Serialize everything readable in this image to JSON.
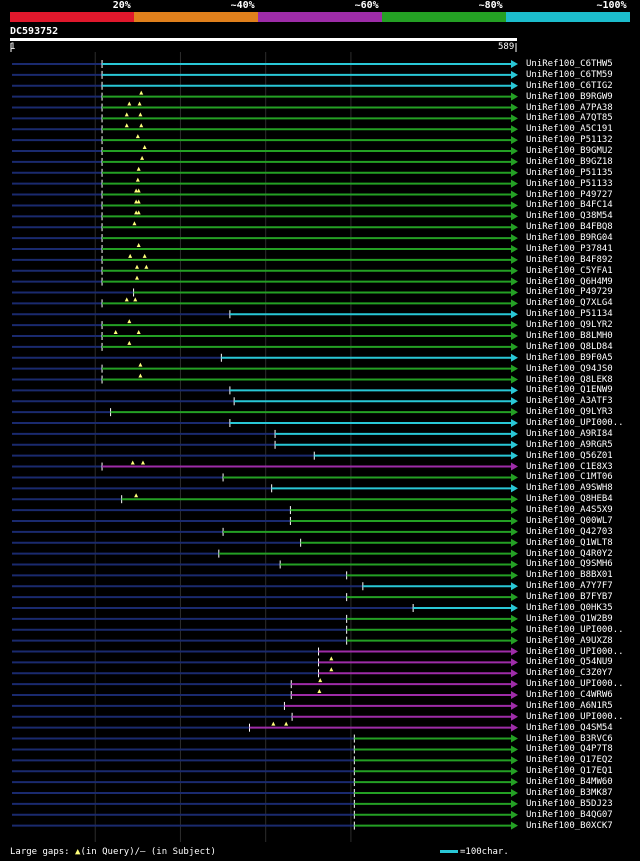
{
  "legend": {
    "segments": [
      {
        "color": "#e0182c",
        "label": "20%"
      },
      {
        "color": "#e0801c",
        "label": "~40%"
      },
      {
        "color": "#9e2ca8",
        "label": "~60%"
      },
      {
        "color": "#24a024",
        "label": "~80%"
      },
      {
        "color": "#1cbccc",
        "label": "~100%"
      }
    ]
  },
  "query": {
    "id": "DC593752",
    "start_label": "1",
    "end_label": "589",
    "length": 589
  },
  "colors": {
    "cyan": "#29c7d6",
    "green": "#24a024",
    "magenta": "#9e2ca8",
    "navy": "#1a2a6e",
    "gap": "#ffff7a",
    "guide": "#2c2c2c"
  },
  "guides": [
    100,
    200,
    300,
    400
  ],
  "hits": [
    {
      "id": "UniRef100_C6THW5",
      "color": "cyan",
      "start": 108,
      "gaps": []
    },
    {
      "id": "UniRef100_C6TM59",
      "color": "cyan",
      "start": 108,
      "gaps": []
    },
    {
      "id": "UniRef100_C6TIG2",
      "color": "cyan",
      "start": 108,
      "gaps": []
    },
    {
      "id": "UniRef100_B9RGW9",
      "color": "green",
      "start": 108,
      "gaps": [
        154
      ]
    },
    {
      "id": "UniRef100_A7PA38",
      "color": "green",
      "start": 108,
      "gaps": [
        140,
        152
      ]
    },
    {
      "id": "UniRef100_A7QT85",
      "color": "green",
      "start": 108,
      "gaps": [
        137,
        153
      ]
    },
    {
      "id": "UniRef100_A5C191",
      "color": "green",
      "start": 108,
      "gaps": [
        137,
        154
      ]
    },
    {
      "id": "UniRef100_P51132",
      "color": "green",
      "start": 108,
      "gaps": [
        150
      ]
    },
    {
      "id": "UniRef100_B9GMU2",
      "color": "green",
      "start": 108,
      "gaps": [
        158
      ]
    },
    {
      "id": "UniRef100_B9GZ18",
      "color": "green",
      "start": 108,
      "gaps": [
        155
      ]
    },
    {
      "id": "UniRef100_P51135",
      "color": "green",
      "start": 108,
      "gaps": [
        151
      ]
    },
    {
      "id": "UniRef100_P51133",
      "color": "green",
      "start": 108,
      "gaps": [
        150
      ]
    },
    {
      "id": "UniRef100_P49727",
      "color": "green",
      "start": 108,
      "gaps": [
        148,
        151
      ]
    },
    {
      "id": "UniRef100_B4FC14",
      "color": "green",
      "start": 108,
      "gaps": [
        148,
        151
      ]
    },
    {
      "id": "UniRef100_Q38M54",
      "color": "green",
      "start": 108,
      "gaps": [
        148,
        151
      ]
    },
    {
      "id": "UniRef100_B4FBQ8",
      "color": "green",
      "start": 108,
      "gaps": [
        146
      ]
    },
    {
      "id": "UniRef100_B9RG04",
      "color": "green",
      "start": 108,
      "gaps": []
    },
    {
      "id": "UniRef100_P37841",
      "color": "green",
      "start": 108,
      "gaps": [
        151
      ]
    },
    {
      "id": "UniRef100_B4F892",
      "color": "green",
      "start": 108,
      "gaps": [
        141,
        158
      ]
    },
    {
      "id": "UniRef100_C5YFA1",
      "color": "green",
      "start": 108,
      "gaps": [
        149,
        160
      ]
    },
    {
      "id": "UniRef100_Q6H4M9",
      "color": "green",
      "start": 108,
      "gaps": [
        149
      ]
    },
    {
      "id": "UniRef100_P49729",
      "color": "green",
      "start": 145,
      "gaps": []
    },
    {
      "id": "UniRef100_Q7XLG4",
      "color": "green",
      "start": 108,
      "gaps": [
        137,
        147
      ]
    },
    {
      "id": "UniRef100_P51134",
      "color": "cyan",
      "start": 258,
      "gaps": []
    },
    {
      "id": "UniRef100_Q9LYR2",
      "color": "green",
      "start": 108,
      "gaps": [
        140
      ]
    },
    {
      "id": "UniRef100_B8LMH0",
      "color": "green",
      "start": 108,
      "gaps": [
        124,
        151
      ]
    },
    {
      "id": "UniRef100_Q8LD84",
      "color": "green",
      "start": 108,
      "gaps": [
        140
      ]
    },
    {
      "id": "UniRef100_B9F0A5",
      "color": "cyan",
      "start": 248,
      "gaps": []
    },
    {
      "id": "UniRef100_Q94JS0",
      "color": "green",
      "start": 108,
      "gaps": [
        153
      ]
    },
    {
      "id": "UniRef100_Q8LEK8",
      "color": "green",
      "start": 108,
      "gaps": [
        153
      ]
    },
    {
      "id": "UniRef100_Q1ENW9",
      "color": "cyan",
      "start": 258,
      "gaps": []
    },
    {
      "id": "UniRef100_A3ATF3",
      "color": "cyan",
      "start": 263,
      "gaps": []
    },
    {
      "id": "UniRef100_Q9LYR3",
      "color": "green",
      "start": 118,
      "gaps": []
    },
    {
      "id": "UniRef100_UPI000..",
      "color": "cyan",
      "start": 258,
      "gaps": []
    },
    {
      "id": "UniRef100_A9RI84",
      "color": "cyan",
      "start": 311,
      "gaps": []
    },
    {
      "id": "UniRef100_A9RGR5",
      "color": "cyan",
      "start": 311,
      "gaps": []
    },
    {
      "id": "UniRef100_Q56Z01",
      "color": "cyan",
      "start": 357,
      "gaps": []
    },
    {
      "id": "UniRef100_C1E8X3",
      "color": "magenta",
      "start": 108,
      "gaps": [
        144,
        156
      ]
    },
    {
      "id": "UniRef100_C1MT06",
      "color": "green",
      "start": 250,
      "gaps": []
    },
    {
      "id": "UniRef100_A9SWH8",
      "color": "cyan",
      "start": 307,
      "gaps": []
    },
    {
      "id": "UniRef100_Q8HEB4",
      "color": "green",
      "start": 131,
      "gaps": [
        148
      ]
    },
    {
      "id": "UniRef100_A4S5X9",
      "color": "green",
      "start": 329,
      "gaps": []
    },
    {
      "id": "UniRef100_Q00WL7",
      "color": "green",
      "start": 329,
      "gaps": []
    },
    {
      "id": "UniRef100_Q42703",
      "color": "green",
      "start": 250,
      "gaps": []
    },
    {
      "id": "UniRef100_Q1WLT8",
      "color": "green",
      "start": 341,
      "gaps": []
    },
    {
      "id": "UniRef100_Q4R0Y2",
      "color": "green",
      "start": 245,
      "gaps": []
    },
    {
      "id": "UniRef100_Q9SMH6",
      "color": "green",
      "start": 317,
      "gaps": []
    },
    {
      "id": "UniRef100_B8BX01",
      "color": "green",
      "start": 395,
      "gaps": []
    },
    {
      "id": "UniRef100_A7Y7F7",
      "color": "cyan",
      "start": 414,
      "gaps": []
    },
    {
      "id": "UniRef100_B7FYB7",
      "color": "green",
      "start": 395,
      "gaps": []
    },
    {
      "id": "UniRef100_Q0HK35",
      "color": "cyan",
      "start": 473,
      "gaps": []
    },
    {
      "id": "UniRef100_Q1W2B9",
      "color": "green",
      "start": 395,
      "gaps": []
    },
    {
      "id": "UniRef100_UPI000..",
      "color": "green",
      "start": 395,
      "gaps": []
    },
    {
      "id": "UniRef100_A9UXZ8",
      "color": "green",
      "start": 395,
      "gaps": []
    },
    {
      "id": "UniRef100_UPI000..",
      "color": "magenta",
      "start": 362,
      "gaps": []
    },
    {
      "id": "UniRef100_Q54NU9",
      "color": "magenta",
      "start": 362,
      "gaps": [
        377
      ]
    },
    {
      "id": "UniRef100_C3Z0Y7",
      "color": "magenta",
      "start": 362,
      "gaps": [
        377
      ]
    },
    {
      "id": "UniRef100_UPI000..",
      "color": "magenta",
      "start": 330,
      "gaps": [
        364
      ]
    },
    {
      "id": "UniRef100_C4WRW6",
      "color": "magenta",
      "start": 330,
      "gaps": [
        363
      ]
    },
    {
      "id": "UniRef100_A6N1R5",
      "color": "magenta",
      "start": 322,
      "gaps": []
    },
    {
      "id": "UniRef100_UPI000..",
      "color": "magenta",
      "start": 331,
      "gaps": []
    },
    {
      "id": "UniRef100_Q4SM54",
      "color": "magenta",
      "start": 281,
      "gaps": [
        309,
        324
      ]
    },
    {
      "id": "UniRef100_B3RVC6",
      "color": "green",
      "start": 404,
      "gaps": []
    },
    {
      "id": "UniRef100_Q4P7T8",
      "color": "green",
      "start": 404,
      "gaps": []
    },
    {
      "id": "UniRef100_Q17EQ2",
      "color": "green",
      "start": 404,
      "gaps": []
    },
    {
      "id": "UniRef100_Q17EQ1",
      "color": "green",
      "start": 404,
      "gaps": []
    },
    {
      "id": "UniRef100_B4MW60",
      "color": "green",
      "start": 404,
      "gaps": []
    },
    {
      "id": "UniRef100_B3MK87",
      "color": "green",
      "start": 404,
      "gaps": []
    },
    {
      "id": "UniRef100_B5DJ23",
      "color": "green",
      "start": 404,
      "gaps": []
    },
    {
      "id": "UniRef100_B4QG07",
      "color": "green",
      "start": 404,
      "gaps": []
    },
    {
      "id": "UniRef100_B0XCK7",
      "color": "green",
      "start": 404,
      "gaps": []
    }
  ],
  "footer": {
    "left_prefix": "Large gaps: ",
    "left_symbol": "▲",
    "left_suffix": "(in Query)/– (in Subject)",
    "right_text": "=100char."
  }
}
